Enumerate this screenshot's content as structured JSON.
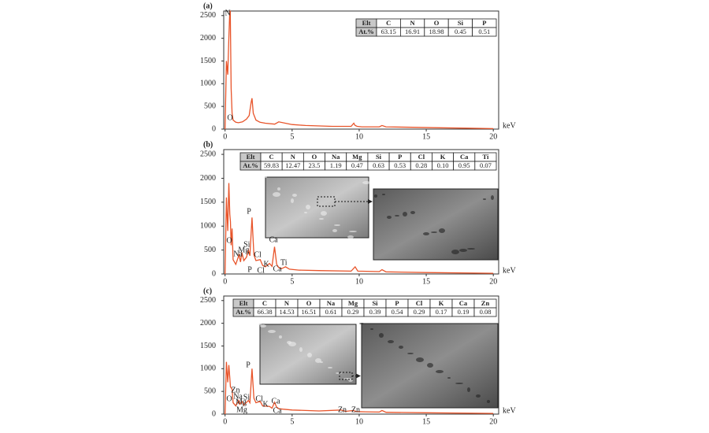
{
  "chart_data": [
    {
      "type": "line",
      "title": "(a)",
      "x_label": "keV",
      "color": "#e8542a",
      "xlim": [
        -0.1,
        20.4
      ],
      "xticks": [
        0,
        5,
        10,
        15,
        20
      ],
      "ylim": [
        0,
        2600
      ],
      "yticks": [
        0,
        500,
        1000,
        1500,
        2000,
        2500
      ],
      "x": [
        0,
        0.1,
        0.2,
        0.28,
        0.35,
        0.39,
        0.45,
        0.52,
        0.6,
        0.8,
        1.0,
        1.3,
        1.6,
        1.8,
        1.95,
        2.01,
        2.1,
        2.3,
        2.6,
        3.0,
        3.7,
        4.0,
        5,
        6,
        8,
        9.4,
        9.6,
        9.7,
        9.85,
        10.2,
        11.5,
        11.7,
        12,
        14,
        16,
        18,
        20
      ],
      "values": [
        0,
        1500,
        1200,
        2000,
        2600,
        2600,
        900,
        350,
        200,
        150,
        140,
        160,
        220,
        300,
        600,
        680,
        350,
        200,
        150,
        130,
        110,
        160,
        100,
        80,
        60,
        60,
        130,
        80,
        60,
        50,
        50,
        80,
        50,
        40,
        30,
        20,
        10
      ],
      "annotations": [
        "N",
        "O"
      ],
      "table": {
        "rows": [
          [
            "Elt",
            "C",
            "N",
            "O",
            "Si",
            "P"
          ],
          [
            "At.%",
            "63.15",
            "16.91",
            "18.98",
            "0.45",
            "0.51"
          ]
        ]
      }
    },
    {
      "type": "line",
      "title": "(b)",
      "x_label": "keV",
      "color": "#e8542a",
      "xlim": [
        -0.1,
        20.4
      ],
      "xticks": [
        0,
        5,
        10,
        15,
        20
      ],
      "ylim": [
        0,
        2600
      ],
      "yticks": [
        0,
        500,
        1000,
        1500,
        2000,
        2500
      ],
      "x": [
        0,
        0.1,
        0.2,
        0.28,
        0.35,
        0.4,
        0.45,
        0.52,
        0.6,
        0.8,
        1.04,
        1.15,
        1.25,
        1.4,
        1.6,
        1.74,
        1.85,
        2.01,
        2.15,
        2.3,
        2.62,
        2.8,
        3.0,
        3.31,
        3.5,
        3.69,
        3.85,
        4.01,
        4.2,
        4.51,
        4.8,
        5.5,
        7,
        9.4,
        9.7,
        9.9,
        11.5,
        11.7,
        12,
        15,
        20
      ],
      "values": [
        0,
        1600,
        900,
        1900,
        1250,
        1100,
        600,
        950,
        300,
        200,
        400,
        250,
        450,
        280,
        350,
        500,
        380,
        1180,
        400,
        280,
        300,
        180,
        150,
        220,
        160,
        570,
        200,
        130,
        110,
        150,
        100,
        80,
        70,
        60,
        150,
        60,
        50,
        90,
        45,
        30,
        15
      ],
      "annotations": [
        "O",
        "Na",
        "Mg",
        "Si",
        "P",
        "Cl",
        "K",
        "Ca",
        "Ti",
        "P",
        "Cl",
        "Ca"
      ],
      "table": {
        "rows": [
          [
            "Elt",
            "C",
            "N",
            "O",
            "Na",
            "Mg",
            "Si",
            "P",
            "Cl",
            "K",
            "Ca",
            "Ti"
          ],
          [
            "At.%",
            "59.83",
            "12.47",
            "23.5",
            "1.19",
            "0.47",
            "0.63",
            "0.53",
            "0.28",
            "0.10",
            "0.95",
            "0.07"
          ]
        ]
      }
    },
    {
      "type": "line",
      "title": "(c)",
      "x_label": "keV",
      "color": "#e8542a",
      "xlim": [
        -0.1,
        20.4
      ],
      "xticks": [
        0,
        5,
        10,
        15,
        20
      ],
      "ylim": [
        0,
        2600
      ],
      "yticks": [
        0,
        500,
        1000,
        1500,
        2000,
        2500
      ],
      "x": [
        0,
        0.1,
        0.2,
        0.28,
        0.35,
        0.4,
        0.52,
        0.6,
        0.8,
        1.01,
        1.1,
        1.25,
        1.4,
        1.74,
        1.85,
        2.01,
        2.15,
        2.3,
        2.62,
        2.8,
        3.31,
        3.5,
        3.69,
        3.85,
        4.01,
        4.3,
        5,
        6,
        7,
        8.64,
        9.0,
        9.57,
        9.8,
        10.5,
        11.5,
        11.7,
        12,
        15,
        20
      ],
      "values": [
        0,
        1150,
        700,
        1080,
        800,
        600,
        550,
        250,
        180,
        300,
        220,
        280,
        200,
        300,
        250,
        1000,
        350,
        250,
        280,
        180,
        170,
        130,
        260,
        150,
        120,
        110,
        90,
        80,
        70,
        90,
        60,
        80,
        55,
        50,
        45,
        80,
        40,
        30,
        15
      ],
      "annotations": [
        "Zn",
        "Na",
        "Mg",
        "Si",
        "P",
        "O",
        "Cl",
        "K",
        "Ca",
        "Mg",
        "Ca",
        "Zn",
        "Zn"
      ],
      "table": {
        "rows": [
          [
            "Elt",
            "C",
            "N",
            "O",
            "Na",
            "Mg",
            "Si",
            "P",
            "Cl",
            "K",
            "Ca",
            "Zn"
          ],
          [
            "At.%",
            "66.38",
            "14.53",
            "16.51",
            "0.61",
            "0.29",
            "0.39",
            "0.54",
            "0.29",
            "0.17",
            "0.19",
            "0.08"
          ]
        ]
      }
    }
  ]
}
